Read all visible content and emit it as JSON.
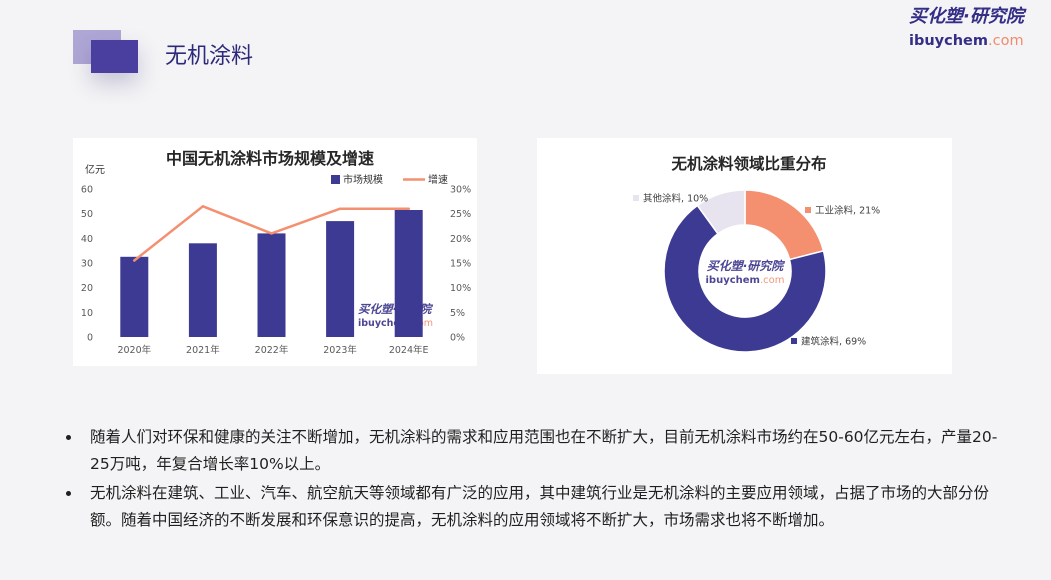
{
  "slide": {
    "title": "无机涂料",
    "logo": {
      "cn": "买化塑·研究院",
      "en": "ibuychem",
      "tld": ".com"
    }
  },
  "colors": {
    "background": "#f4f4f6",
    "title": "#2e2a7a",
    "primary": "#3d3a94",
    "accent": "#f4906f",
    "muted": "#e7e4f0",
    "deco_light": "#a79fd2",
    "deco_dark": "#4a3f9f"
  },
  "chart_data": [
    {
      "type": "bar",
      "title": "中国无机涂料市场规模及增速",
      "ylabel": "亿元",
      "categories": [
        "2020年",
        "2021年",
        "2022年",
        "2023年",
        "2024年E"
      ],
      "series": [
        {
          "name": "市场规模",
          "kind": "bar",
          "axis": "left",
          "values": [
            32.5,
            38,
            42,
            47,
            51.5
          ],
          "color": "#3d3a94"
        },
        {
          "name": "增速",
          "kind": "line",
          "axis": "right",
          "values": [
            15.5,
            26.5,
            21,
            26,
            26
          ],
          "color": "#f4906f"
        }
      ],
      "ylim": [
        0,
        60
      ],
      "yticks": [
        0,
        10,
        20,
        30,
        40,
        50,
        60
      ],
      "y2lim": [
        0,
        30
      ],
      "y2ticks": [
        "0%",
        "5%",
        "10%",
        "15%",
        "20%",
        "25%",
        "30%"
      ],
      "grid": false,
      "legend": "top-right"
    },
    {
      "type": "pie",
      "variant": "donut",
      "title": "无机涂料领域比重分布",
      "categories": [
        "工业涂料",
        "建筑涂料",
        "其他涂料"
      ],
      "values": [
        21,
        69,
        10
      ],
      "unit": "%",
      "colors": [
        "#f4906f",
        "#3d3a94",
        "#e7e4f0"
      ],
      "legend": "none"
    }
  ],
  "bullets": [
    "随着人们对环保和健康的关注不断增加，无机涂料的需求和应用范围也在不断扩大，目前无机涂料市场约在50-60亿元左右，产量20-25万吨，年复合增长率10%以上。",
    "无机涂料在建筑、工业、汽车、航空航天等领域都有广泛的应用，其中建筑行业是无机涂料的主要应用领域，占据了市场的大部分份额。随着中国经济的不断发展和环保意识的提高，无机涂料的应用领域将不断扩大，市场需求也将不断增加。"
  ]
}
